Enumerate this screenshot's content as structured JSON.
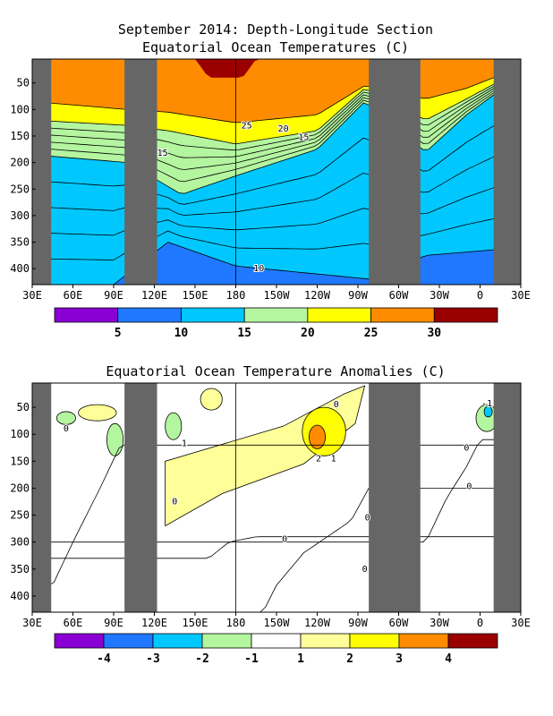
{
  "chart_data": [
    {
      "type": "heatmap",
      "title": "September 2014: Depth-Longitude Section",
      "subtitle": "Equatorial Ocean Temperatures (C)",
      "xlabel": "",
      "ylabel": "",
      "x_ticks": [
        "30E",
        "60E",
        "90E",
        "120E",
        "150E",
        "180",
        "150W",
        "120W",
        "90W",
        "60W",
        "30W",
        "0",
        "30E"
      ],
      "y_ticks": [
        50,
        100,
        150,
        200,
        250,
        300,
        350,
        400
      ],
      "xlim_deg_east": [
        30,
        390
      ],
      "ylim_depth_m": [
        430,
        5
      ],
      "land_masks_deg_east": [
        [
          30,
          44
        ],
        [
          98,
          122
        ],
        [
          278,
          316
        ],
        [
          370,
          390
        ]
      ],
      "contour_labels": [
        {
          "text": "25",
          "lon": 188,
          "depth": 136
        },
        {
          "text": "20",
          "lon": 215,
          "depth": 142
        },
        {
          "text": "15",
          "lon": 230,
          "depth": 158
        },
        {
          "text": "15",
          "lon": 126,
          "depth": 187
        },
        {
          "text": "10",
          "lon": 197,
          "depth": 405
        }
      ],
      "colorbar": {
        "ticks": [
          "5",
          "10",
          "15",
          "20",
          "25",
          "30"
        ],
        "colors": [
          "#8a00d4",
          "#1f78ff",
          "#00c8ff",
          "#b4f5a0",
          "#ffff00",
          "#ff8c00",
          "#9a0000"
        ]
      }
    },
    {
      "type": "heatmap",
      "title": "Equatorial Ocean Temperature Anomalies (C)",
      "xlabel": "",
      "ylabel": "",
      "x_ticks": [
        "30E",
        "60E",
        "90E",
        "120E",
        "150E",
        "180",
        "150W",
        "120W",
        "90W",
        "60W",
        "30W",
        "0",
        "30E"
      ],
      "y_ticks": [
        50,
        100,
        150,
        200,
        250,
        300,
        350,
        400
      ],
      "xlim_deg_east": [
        30,
        390
      ],
      "ylim_depth_m": [
        430,
        5
      ],
      "land_masks_deg_east": [
        [
          30,
          44
        ],
        [
          98,
          122
        ],
        [
          278,
          316
        ],
        [
          370,
          390
        ]
      ],
      "contour_labels": [
        {
          "text": "0",
          "lon": 55,
          "depth": 95
        },
        {
          "text": "0",
          "lon": 135,
          "depth": 230
        },
        {
          "text": "1",
          "lon": 142,
          "depth": 122
        },
        {
          "text": "2",
          "lon": 241,
          "depth": 150
        },
        {
          "text": "1",
          "lon": 252,
          "depth": 150
        },
        {
          "text": "0",
          "lon": 254,
          "depth": 50
        },
        {
          "text": "0",
          "lon": 216,
          "depth": 300
        },
        {
          "text": "0",
          "lon": 277,
          "depth": 260
        },
        {
          "text": "0",
          "lon": 275,
          "depth": 355
        },
        {
          "text": "0",
          "lon": 352,
          "depth": 202
        },
        {
          "text": "-1",
          "lon": 365,
          "depth": 48
        },
        {
          "text": "0",
          "lon": 350,
          "depth": 130
        }
      ],
      "colorbar": {
        "ticks": [
          "-4",
          "-3",
          "-2",
          "-1",
          "1",
          "2",
          "3",
          "4"
        ],
        "colors": [
          "#8a00d4",
          "#1f78ff",
          "#00c8ff",
          "#b4f5a0",
          "#ffffff",
          "#ffff99",
          "#ffff00",
          "#ff8c00",
          "#9a0000"
        ]
      }
    }
  ]
}
